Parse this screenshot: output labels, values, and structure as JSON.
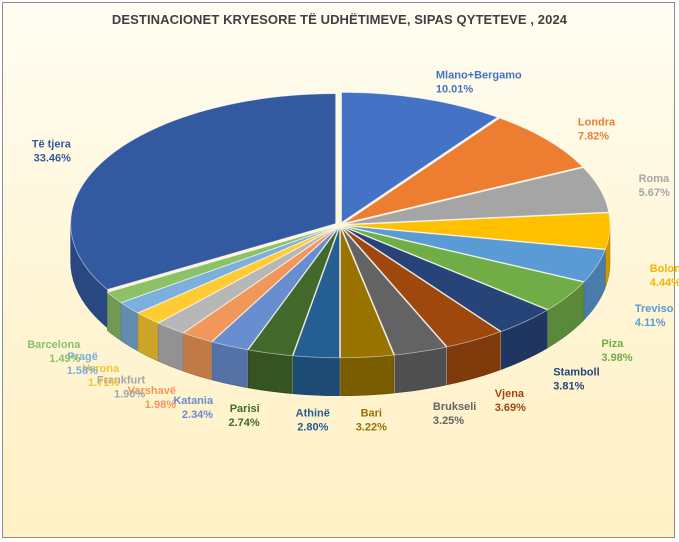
{
  "chart_data": {
    "type": "pie",
    "title": "DESTINACIONET KRYESORE TË UDHËTIMEVE, SIPAS QYTETEVE , 2024",
    "style": "3d-exploded-pie",
    "slices": [
      {
        "name": "Mlano+Bergamo",
        "value": 10.01,
        "label": "10.01%",
        "color": "#4472c4"
      },
      {
        "name": "Londra",
        "value": 7.82,
        "label": "7.82%",
        "color": "#ed7d31"
      },
      {
        "name": "Roma",
        "value": 5.67,
        "label": "5.67%",
        "color": "#a5a5a5"
      },
      {
        "name": "Bolonja",
        "value": 4.44,
        "label": "4.44%",
        "color": "#ffc000"
      },
      {
        "name": "Treviso",
        "value": 4.11,
        "label": "4.11%",
        "color": "#5b9bd5"
      },
      {
        "name": "Piza",
        "value": 3.98,
        "label": "3.98%",
        "color": "#70ad47"
      },
      {
        "name": "Stamboll",
        "value": 3.81,
        "label": "3.81%",
        "color": "#264478"
      },
      {
        "name": "Vjena",
        "value": 3.69,
        "label": "3.69%",
        "color": "#9e480e"
      },
      {
        "name": "Brukseli",
        "value": 3.25,
        "label": "3.25%",
        "color": "#636363"
      },
      {
        "name": "Bari",
        "value": 3.22,
        "label": "3.22%",
        "color": "#997300"
      },
      {
        "name": "Athinë",
        "value": 2.8,
        "label": "2.80%",
        "color": "#255e91"
      },
      {
        "name": "Parisi",
        "value": 2.74,
        "label": "2.74%",
        "color": "#43682b"
      },
      {
        "name": "Katania",
        "value": 2.34,
        "label": "2.34%",
        "color": "#698ed0"
      },
      {
        "name": "Varshavë",
        "value": 1.98,
        "label": "1.98%",
        "color": "#f1975a"
      },
      {
        "name": "Frankfurt",
        "value": 1.9,
        "label": "1.90%",
        "color": "#b7b7b7"
      },
      {
        "name": "Verona",
        "value": 1.71,
        "label": "1.71%",
        "color": "#ffcd33"
      },
      {
        "name": "Pragë",
        "value": 1.58,
        "label": "1.58%",
        "color": "#7cafdd"
      },
      {
        "name": "Barcelona",
        "value": 1.49,
        "label": "1.49%",
        "color": "#8cc168"
      },
      {
        "name": "Të tjera",
        "value": 33.46,
        "label": "33.46%",
        "color": "#335aa1"
      }
    ]
  }
}
